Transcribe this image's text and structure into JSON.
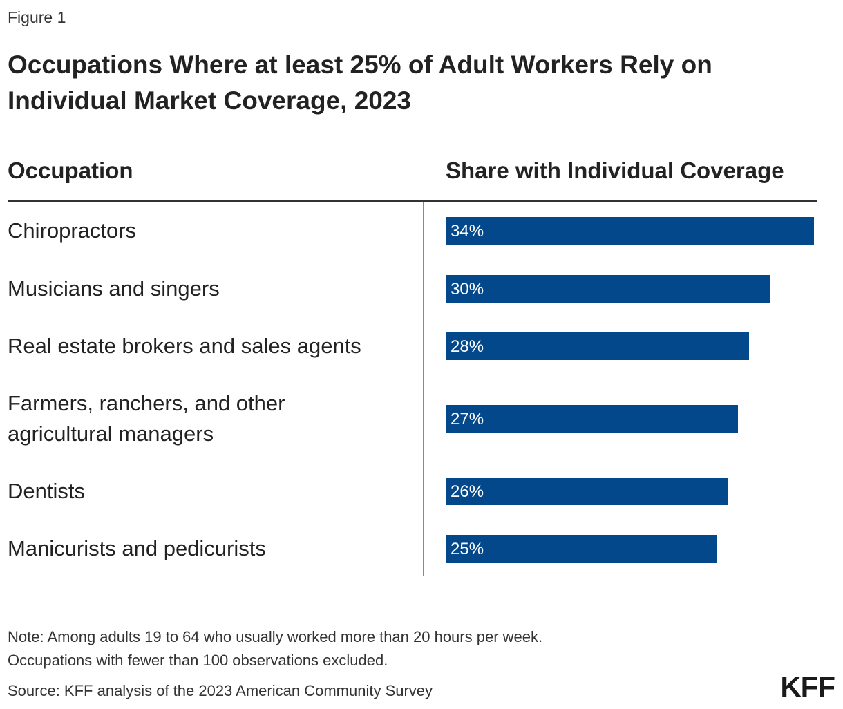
{
  "figure_label": "Figure 1",
  "title": "Occupations Where at least 25% of Adult Workers Rely on Individual Market Coverage, 2023",
  "column_headers": {
    "occupation": "Occupation",
    "share": "Share with Individual Coverage"
  },
  "colors": {
    "bar": "#03488a",
    "bar_text": "#ffffff"
  },
  "chart_data": {
    "type": "bar",
    "orientation": "horizontal",
    "categories": [
      "Chiropractors",
      "Musicians and singers",
      "Real estate brokers and sales agents",
      "Farmers, ranchers, and other agricultural managers",
      "Dentists",
      "Manicurists and pedicurists"
    ],
    "values": [
      34,
      30,
      28,
      27,
      26,
      25
    ],
    "value_labels": [
      "34%",
      "30%",
      "28%",
      "27%",
      "26%",
      "25%"
    ],
    "title": "Occupations Where at least 25% of Adult Workers Rely on Individual Market Coverage, 2023",
    "xlabel": "Share with Individual Coverage",
    "ylabel": "Occupation",
    "xlim": [
      0,
      34
    ],
    "grid": false,
    "legend": "none"
  },
  "note": [
    "Note: Among adults 19 to 64 who usually worked more than 20 hours per week.",
    "Occupations with fewer than 100 observations excluded."
  ],
  "source": "Source: KFF analysis of the 2023 American Community Survey",
  "logo": "KFF"
}
